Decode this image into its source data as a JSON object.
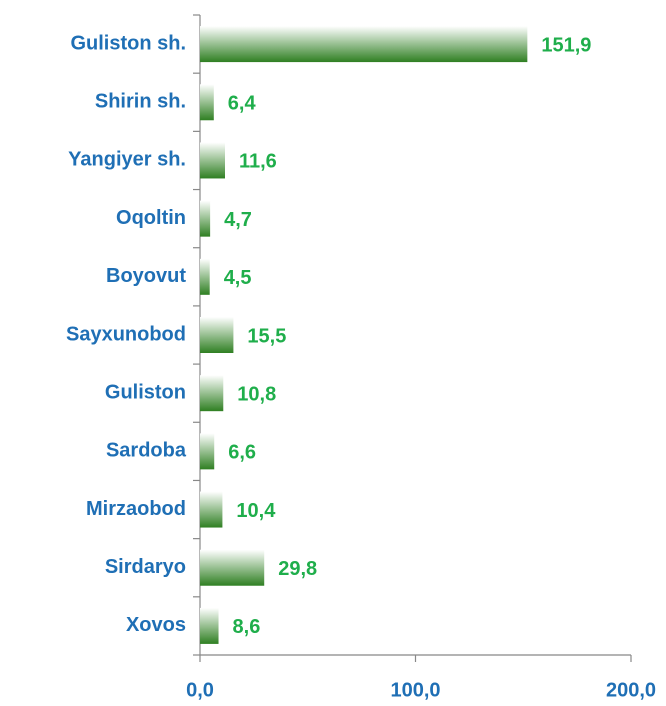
{
  "chart_data": {
    "type": "bar",
    "orientation": "horizontal",
    "categories": [
      "Guliston sh.",
      "Shirin sh.",
      "Yangiyer sh.",
      "Oqoltin",
      "Boyovut",
      "Sayxunobod",
      "Guliston",
      "Sardoba",
      "Mirzaobod",
      "Sirdaryo",
      "Xovos"
    ],
    "values": [
      151.9,
      6.4,
      11.6,
      4.7,
      4.5,
      15.5,
      10.8,
      6.6,
      10.4,
      29.8,
      8.6
    ],
    "value_labels": [
      "151,9",
      "6,4",
      "11,6",
      "4,7",
      "4,5",
      "15,5",
      "10,8",
      "6,6",
      "10,4",
      "29,8",
      "8,6"
    ],
    "color": "#2f7f22",
    "xlim": [
      0,
      200
    ],
    "xticks": [
      {
        "value": 0,
        "label": "0,0"
      },
      {
        "value": 100,
        "label": "100,0"
      },
      {
        "value": 200,
        "label": "200,0"
      }
    ],
    "grid": false
  }
}
